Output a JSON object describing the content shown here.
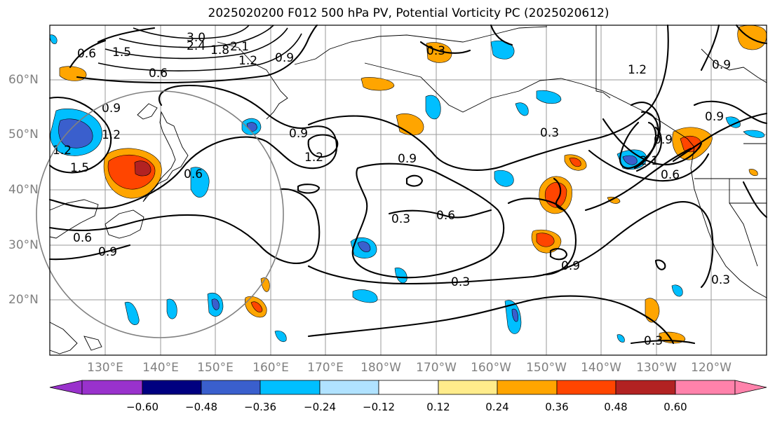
{
  "title": "2025020200 F012 500 hPa PV, Potential Vorticity PC (2025020612)",
  "lat_labels": [
    "60°N",
    "50°N",
    "40°N",
    "30°N",
    "20°N"
  ],
  "lon_labels": [
    "130°E",
    "140°E",
    "150°E",
    "160°E",
    "170°E",
    "180°W",
    "170°W",
    "160°W",
    "150°W",
    "140°W",
    "130°W",
    "120°W"
  ],
  "contour_labels": [
    "3.0",
    "2.4",
    "1.8",
    "2.1",
    "1.5",
    "1.2",
    "0.9",
    "0.6",
    "0.3"
  ],
  "colorbar": {
    "ticks": [
      "−0.60",
      "−0.48",
      "−0.36",
      "−0.24",
      "−0.12",
      "0.12",
      "0.24",
      "0.36",
      "0.48",
      "0.60"
    ],
    "colors": [
      "#9932cc",
      "#000080",
      "#3a5fcd",
      "#00bfff",
      "#b0e2ff",
      "#ffffff",
      "#ffec8b",
      "#ffa500",
      "#ff4500",
      "#b22222",
      "#ff82ab"
    ]
  }
}
